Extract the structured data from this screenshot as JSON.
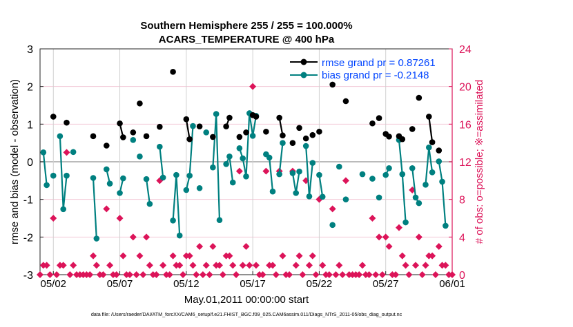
{
  "chart_data": {
    "type": "line",
    "title": [
      "Southern Hemisphere 255 / 255 = 100.000%",
      "ACARS_TEMPERATURE @ 400 hPa"
    ],
    "xlabel": "May.01,2011 00:00:00 start",
    "ylabel": "rmse and bias (model - observation)",
    "ylabel_right": "# of obs: o=possible; ※=assimilated",
    "footer": "data file: /Users/raeder/DAI/ATM_forcXX/CAM6_setup/f.e21.FHIST_BGC.f09_025.CAM6assim.011/Diags_NTrS_2011-05/obs_diag_output.nc",
    "x_unit": "days since May.01,2011 00:00:00",
    "time_step_days": 0.25,
    "xlim": [
      0,
      31
    ],
    "ylim": [
      -3,
      3
    ],
    "ylim_right": [
      0,
      24
    ],
    "x_ticks": [
      {
        "value": 1,
        "label": "05/02"
      },
      {
        "value": 6,
        "label": "05/07"
      },
      {
        "value": 11,
        "label": "05/12"
      },
      {
        "value": 16,
        "label": "05/17"
      },
      {
        "value": 21,
        "label": "05/22"
      },
      {
        "value": 26,
        "label": "05/27"
      },
      {
        "value": 31,
        "label": "06/01"
      }
    ],
    "y_ticks": [
      "-3",
      "-2",
      "-1",
      "0",
      "1",
      "2",
      "3"
    ],
    "y_ticks_right": [
      "0",
      "4",
      "8",
      "12",
      "16",
      "20",
      "24"
    ],
    "legend": {
      "placement": "top-right",
      "entries": [
        "rmse grand pr = 0.87261",
        "bias grand pr = -0.2148"
      ]
    },
    "colors": {
      "rmse": "#000000",
      "bias": "#008080",
      "obs": "#dc1459",
      "legend_text": "#0044ff",
      "grid_h": "#f2c8d6",
      "grid_v": "#d0d0d0",
      "zero": "#bbbbbb"
    },
    "series": [
      {
        "name": "rmse",
        "values": [
          null,
          null,
          null,
          null,
          1.2,
          null,
          null,
          null,
          1.04,
          null,
          null,
          null,
          null,
          null,
          null,
          null,
          0.68,
          null,
          null,
          null,
          0.43,
          null,
          null,
          null,
          1.02,
          0.65,
          null,
          null,
          0.78,
          null,
          1.55,
          null,
          0.68,
          null,
          null,
          null,
          0.93,
          null,
          null,
          null,
          2.39,
          null,
          null,
          null,
          1.13,
          0.6,
          null,
          null,
          0.94,
          null,
          null,
          null,
          0.66,
          null,
          null,
          null,
          0.94,
          1.17,
          null,
          null,
          0.66,
          null,
          0.78,
          null,
          1.24,
          1.2,
          null,
          null,
          0.8,
          null,
          null,
          null,
          1.17,
          0.7,
          null,
          null,
          0.5,
          null,
          0.9,
          null,
          0.62,
          null,
          0.71,
          null,
          0.8,
          null,
          null,
          null,
          2.05,
          null,
          null,
          null,
          1.61,
          null,
          null,
          null,
          null,
          null,
          null,
          null,
          1.02,
          null,
          1.16,
          null,
          0.74,
          0.67,
          null,
          null,
          0.68,
          0.6,
          null,
          null,
          0.87,
          null,
          1.7,
          null,
          null,
          1.2,
          0.52,
          null,
          0.3,
          null,
          null,
          null,
          null
        ]
      },
      {
        "name": "bias",
        "values": [
          null,
          0.25,
          -0.62,
          null,
          -0.37,
          null,
          0.68,
          -1.26,
          -0.37,
          null,
          0.26,
          null,
          null,
          null,
          null,
          null,
          -0.43,
          -2.04,
          null,
          null,
          -0.2,
          -0.58,
          null,
          null,
          -0.83,
          -0.44,
          null,
          null,
          0.58,
          null,
          0.14,
          null,
          -0.46,
          -1.12,
          null,
          null,
          0.4,
          -0.42,
          null,
          null,
          -1.56,
          -0.35,
          -1.96,
          null,
          -0.75,
          -0.37,
          0.95,
          null,
          -0.7,
          null,
          0.78,
          null,
          -0.15,
          1.27,
          -1.55,
          null,
          -0.06,
          0.14,
          -0.55,
          null,
          0.36,
          0.09,
          -0.39,
          1.29,
          0.69,
          1.22,
          null,
          null,
          0.2,
          0.11,
          -0.79,
          null,
          -0.33,
          0.5,
          null,
          null,
          -0.3,
          -0.83,
          -0.26,
          null,
          0.42,
          -0.92,
          -0.03,
          null,
          -0.35,
          -0.93,
          null,
          null,
          -1.68,
          null,
          -0.13,
          null,
          -1.0,
          null,
          null,
          null,
          null,
          -0.33,
          null,
          null,
          -0.45,
          null,
          -0.95,
          null,
          -0.35,
          -0.17,
          null,
          null,
          0.58,
          -0.33,
          -1.61,
          null,
          -0.17,
          -0.95,
          -1.1,
          null,
          -0.61,
          0.38,
          -0.28,
          null,
          0.01,
          -0.53,
          -1.7,
          null,
          null
        ]
      },
      {
        "name": "obs_count",
        "axis": "right",
        "values": [
          0,
          1,
          1,
          0,
          6,
          0,
          1,
          1,
          13,
          0,
          1,
          0,
          0,
          0,
          0,
          0,
          2,
          1,
          0,
          0,
          7,
          1,
          0,
          0,
          6,
          2,
          0,
          0,
          4,
          0,
          2,
          0,
          4,
          1,
          0,
          0,
          10,
          1,
          0,
          0,
          2,
          1,
          1,
          0,
          2,
          2,
          1,
          0,
          3,
          0,
          1,
          0,
          3,
          1,
          1,
          0,
          2,
          2,
          1,
          0,
          11,
          1,
          3,
          1,
          20,
          1,
          0,
          0,
          11,
          1,
          1,
          0,
          11,
          2,
          0,
          0,
          11,
          1,
          2,
          0,
          10,
          1,
          2,
          0,
          8,
          1,
          0,
          0,
          7,
          0,
          1,
          0,
          10,
          0,
          0,
          0,
          0,
          1,
          0,
          0,
          6,
          0,
          4,
          0,
          4,
          3,
          0,
          0,
          5,
          2,
          1,
          0,
          9,
          1,
          4,
          0,
          1,
          2,
          2,
          0,
          3,
          1,
          1,
          0,
          0
        ]
      }
    ]
  }
}
